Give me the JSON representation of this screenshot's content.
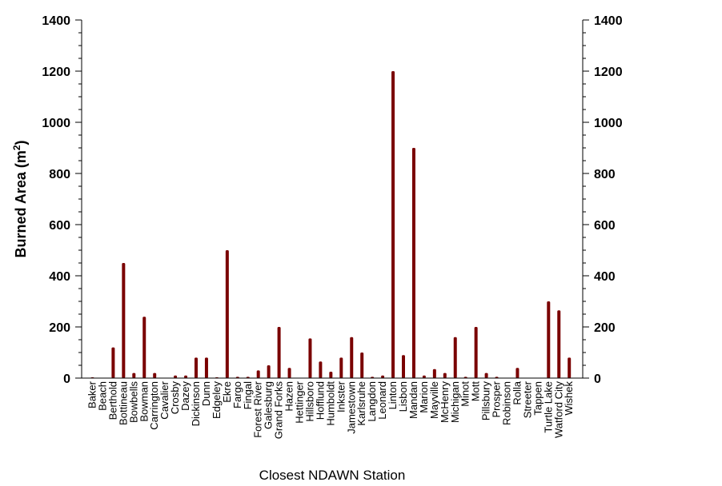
{
  "chart_data": {
    "type": "bar",
    "xlabel": "Closest NDAWN Station",
    "ylabel": "Burned Area (m",
    "ylabel_superscript": "2",
    "ylabel_suffix": ")",
    "ylim": [
      0,
      1400
    ],
    "yticks": [
      "0",
      "200",
      "400",
      "600",
      "800",
      "1000",
      "1200",
      "1400"
    ],
    "right_axis": true,
    "bar_color": "#7a0000",
    "categories": [
      "Baker",
      "Beach",
      "Berthold",
      "Bottineau",
      "Bowbells",
      "Bowman",
      "Carrington",
      "Cavalier",
      "Crosby",
      "Dazey",
      "Dickinson",
      "Dunn",
      "Edgeley",
      "Ekre",
      "Fargo",
      "Fingal",
      "Forest River",
      "Galesburg",
      "Grand Forks",
      "Hazen",
      "Hettinger",
      "Hillsboro",
      "Hofflund",
      "Humboldt",
      "Inkster",
      "Jamestown",
      "Karlsruhe",
      "Langdon",
      "Leonard",
      "Linton",
      "Lisbon",
      "Mandan",
      "Marion",
      "Mayville",
      "McHenry",
      "Michigan",
      "Minot",
      "Mott",
      "Pillsbury",
      "Prosper",
      "Robinson",
      "Rolla",
      "Streeter",
      "Tappen",
      "Turtle Lake",
      "Watford City",
      "Wishek"
    ],
    "values": [
      3,
      0,
      120,
      450,
      20,
      240,
      20,
      0,
      10,
      10,
      80,
      80,
      3,
      500,
      5,
      5,
      30,
      50,
      200,
      40,
      0,
      155,
      65,
      25,
      80,
      160,
      100,
      5,
      10,
      1200,
      90,
      900,
      10,
      35,
      20,
      160,
      5,
      200,
      20,
      5,
      0,
      40,
      0,
      0,
      300,
      265,
      80
    ]
  }
}
